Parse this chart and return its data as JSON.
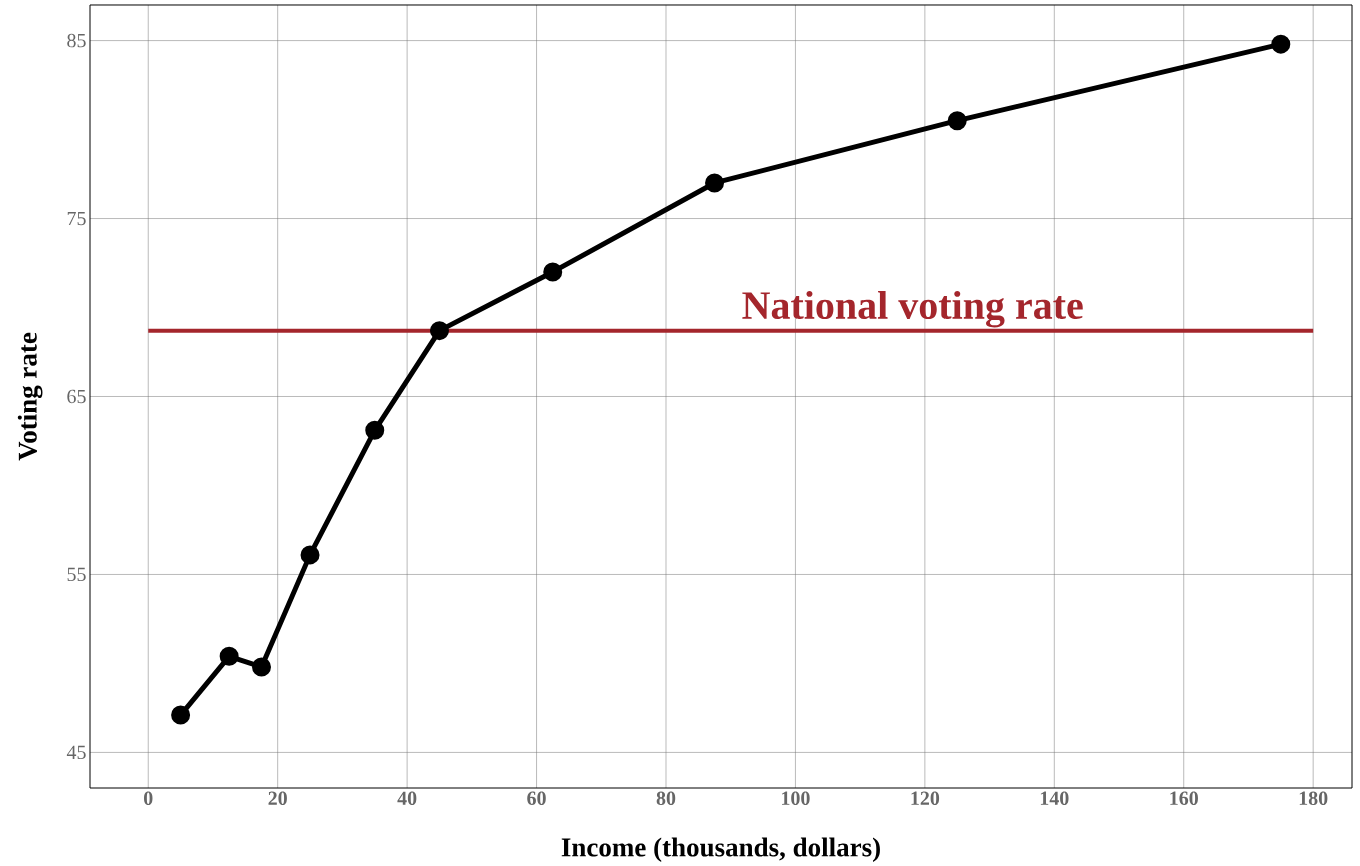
{
  "chart_data": {
    "type": "line",
    "xlabel": "Income (thousands, dollars)",
    "ylabel": "Voting rate",
    "x": [
      5,
      12.5,
      17.5,
      25,
      35,
      45,
      62.5,
      87.5,
      125,
      175
    ],
    "series": [
      {
        "color": "#000000",
        "values": [
          47.1,
          50.4,
          49.8,
          56.1,
          63.1,
          68.7,
          72.0,
          77.0,
          80.5,
          84.8
        ]
      }
    ],
    "marker": "circle",
    "line_style": "solid",
    "xlim": [
      -9,
      186
    ],
    "ylim": [
      43,
      87
    ],
    "xticks": [
      0,
      20,
      40,
      60,
      80,
      100,
      120,
      140,
      160,
      180
    ],
    "yticks": [
      45,
      55,
      65,
      75,
      85
    ],
    "grid": true,
    "ref_lines": [
      {
        "axis": "y",
        "value": 68.7,
        "label": "National voting rate",
        "color": "#a4262c"
      }
    ]
  }
}
